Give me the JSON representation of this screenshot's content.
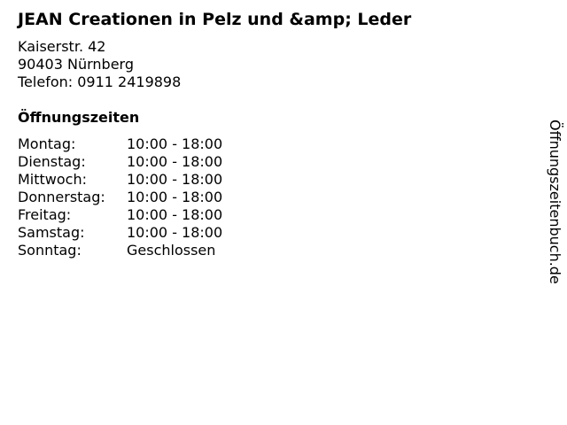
{
  "store": {
    "title": "JEAN Creationen in Pelz und &amp; Leder",
    "street": "Kaiserstr. 42",
    "city": "90403 Nürnberg",
    "phone": "Telefon: 0911 2419898"
  },
  "hours": {
    "heading": "Öffnungszeiten",
    "rows": [
      {
        "day": "Montag:",
        "time": "10:00 - 18:00"
      },
      {
        "day": "Dienstag:",
        "time": "10:00 - 18:00"
      },
      {
        "day": "Mittwoch:",
        "time": "10:00 - 18:00"
      },
      {
        "day": "Donnerstag:",
        "time": "10:00 - 18:00"
      },
      {
        "day": "Freitag:",
        "time": "10:00 - 18:00"
      },
      {
        "day": "Samstag:",
        "time": "10:00 - 18:00"
      },
      {
        "day": "Sonntag:",
        "time": "Geschlossen"
      }
    ]
  },
  "brand": "Öffnungszeitenbuch.de"
}
